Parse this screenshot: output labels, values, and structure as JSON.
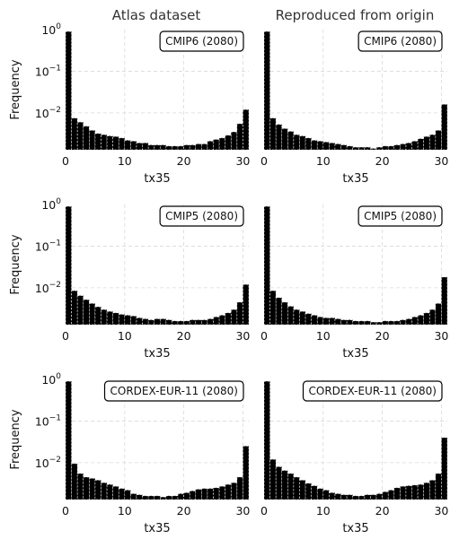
{
  "column_titles": [
    "Atlas dataset",
    "Reproduced from origin"
  ],
  "chart_data": [
    {
      "type": "bar",
      "panel": "CMIP6 Atlas",
      "legend": "CMIP6 (2080)",
      "xlabel": "tx35",
      "ylabel": "Frequency",
      "yscale": "log",
      "ylim": [
        0.0013,
        1
      ],
      "xlim": [
        0,
        31
      ],
      "bin_width": 1,
      "x": [
        0,
        1,
        2,
        3,
        4,
        5,
        6,
        7,
        8,
        9,
        10,
        11,
        12,
        13,
        14,
        15,
        16,
        17,
        18,
        19,
        20,
        21,
        22,
        23,
        24,
        25,
        26,
        27,
        28,
        29,
        30
      ],
      "values": [
        0.9,
        0.0075,
        0.006,
        0.0048,
        0.0038,
        0.0032,
        0.003,
        0.0028,
        0.0027,
        0.0025,
        0.0022,
        0.0021,
        0.0019,
        0.0019,
        0.0017,
        0.0017,
        0.0017,
        0.0016,
        0.0016,
        0.0016,
        0.0017,
        0.0017,
        0.0018,
        0.0018,
        0.0021,
        0.0023,
        0.0025,
        0.0029,
        0.0035,
        0.0055,
        0.012
      ]
    },
    {
      "type": "bar",
      "panel": "CMIP6 Reproduced",
      "legend": "CMIP6 (2080)",
      "xlabel": "tx35",
      "ylabel": "",
      "yscale": "log",
      "ylim": [
        0.0013,
        1
      ],
      "xlim": [
        0,
        31
      ],
      "bin_width": 1,
      "x": [
        0,
        1,
        2,
        3,
        4,
        5,
        6,
        7,
        8,
        9,
        10,
        11,
        12,
        13,
        14,
        15,
        16,
        17,
        18,
        19,
        20,
        21,
        22,
        23,
        24,
        25,
        26,
        27,
        28,
        29,
        30
      ],
      "values": [
        0.9,
        0.0075,
        0.0053,
        0.0042,
        0.0036,
        0.003,
        0.0028,
        0.0025,
        0.0022,
        0.0021,
        0.002,
        0.0019,
        0.0018,
        0.0017,
        0.0016,
        0.0015,
        0.0015,
        0.0015,
        0.0014,
        0.0015,
        0.0016,
        0.0016,
        0.0017,
        0.0018,
        0.0019,
        0.0021,
        0.0024,
        0.0027,
        0.003,
        0.0038,
        0.016
      ]
    },
    {
      "type": "bar",
      "panel": "CMIP5 Atlas",
      "legend": "CMIP5 (2080)",
      "xlabel": "tx35",
      "ylabel": "Frequency",
      "yscale": "log",
      "ylim": [
        0.0013,
        1
      ],
      "xlim": [
        0,
        31
      ],
      "bin_width": 1,
      "x": [
        0,
        1,
        2,
        3,
        4,
        5,
        6,
        7,
        8,
        9,
        10,
        11,
        12,
        13,
        14,
        15,
        16,
        17,
        18,
        19,
        20,
        21,
        22,
        23,
        24,
        25,
        26,
        27,
        28,
        29,
        30
      ],
      "values": [
        0.9,
        0.0085,
        0.0065,
        0.0052,
        0.0042,
        0.0035,
        0.003,
        0.0027,
        0.0025,
        0.0023,
        0.0022,
        0.0021,
        0.0019,
        0.0018,
        0.0017,
        0.0018,
        0.0018,
        0.0017,
        0.0016,
        0.0016,
        0.0016,
        0.0017,
        0.0017,
        0.0017,
        0.0018,
        0.002,
        0.0022,
        0.0025,
        0.003,
        0.0045,
        0.012
      ]
    },
    {
      "type": "bar",
      "panel": "CMIP5 Reproduced",
      "legend": "CMIP5 (2080)",
      "xlabel": "tx35",
      "ylabel": "",
      "yscale": "log",
      "ylim": [
        0.0013,
        1
      ],
      "xlim": [
        0,
        31
      ],
      "bin_width": 1,
      "x": [
        0,
        1,
        2,
        3,
        4,
        5,
        6,
        7,
        8,
        9,
        10,
        11,
        12,
        13,
        14,
        15,
        16,
        17,
        18,
        19,
        20,
        21,
        22,
        23,
        24,
        25,
        26,
        27,
        28,
        29,
        30
      ],
      "values": [
        0.9,
        0.0085,
        0.0058,
        0.0045,
        0.0036,
        0.003,
        0.0027,
        0.0024,
        0.0022,
        0.002,
        0.0019,
        0.0019,
        0.0018,
        0.0017,
        0.0017,
        0.0016,
        0.0016,
        0.0016,
        0.0015,
        0.0015,
        0.0016,
        0.0016,
        0.0016,
        0.0017,
        0.0018,
        0.002,
        0.0022,
        0.0025,
        0.003,
        0.0042,
        0.018
      ]
    },
    {
      "type": "bar",
      "panel": "CORDEX Atlas",
      "legend": "CORDEX-EUR-11 (2080)",
      "xlabel": "tx35",
      "ylabel": "Frequency",
      "yscale": "log",
      "ylim": [
        0.0013,
        1
      ],
      "xlim": [
        0,
        31
      ],
      "bin_width": 1,
      "x": [
        0,
        1,
        2,
        3,
        4,
        5,
        6,
        7,
        8,
        9,
        10,
        11,
        12,
        13,
        14,
        15,
        16,
        17,
        18,
        19,
        20,
        21,
        22,
        23,
        24,
        25,
        26,
        27,
        28,
        29,
        30
      ],
      "values": [
        0.9,
        0.0095,
        0.0055,
        0.0045,
        0.0042,
        0.0038,
        0.0033,
        0.003,
        0.0027,
        0.0024,
        0.0022,
        0.0018,
        0.0017,
        0.0016,
        0.0016,
        0.0016,
        0.0015,
        0.0016,
        0.0016,
        0.0018,
        0.0019,
        0.0021,
        0.0023,
        0.0024,
        0.0024,
        0.0025,
        0.0027,
        0.003,
        0.0033,
        0.0045,
        0.025
      ]
    },
    {
      "type": "bar",
      "panel": "CORDEX Reproduced",
      "legend": "CORDEX-EUR-11 (2080)",
      "xlabel": "tx35",
      "ylabel": "",
      "yscale": "log",
      "ylim": [
        0.0013,
        1
      ],
      "xlim": [
        0,
        31
      ],
      "bin_width": 1,
      "x": [
        0,
        1,
        2,
        3,
        4,
        5,
        6,
        7,
        8,
        9,
        10,
        11,
        12,
        13,
        14,
        15,
        16,
        17,
        18,
        19,
        20,
        21,
        22,
        23,
        24,
        25,
        26,
        27,
        28,
        29,
        30
      ],
      "values": [
        0.9,
        0.012,
        0.008,
        0.0065,
        0.0055,
        0.0045,
        0.0038,
        0.0032,
        0.0028,
        0.0024,
        0.0022,
        0.0019,
        0.0018,
        0.0017,
        0.0017,
        0.0016,
        0.0016,
        0.0017,
        0.0017,
        0.0018,
        0.002,
        0.0022,
        0.0025,
        0.0027,
        0.0028,
        0.0029,
        0.003,
        0.0033,
        0.0038,
        0.0055,
        0.04
      ]
    }
  ]
}
